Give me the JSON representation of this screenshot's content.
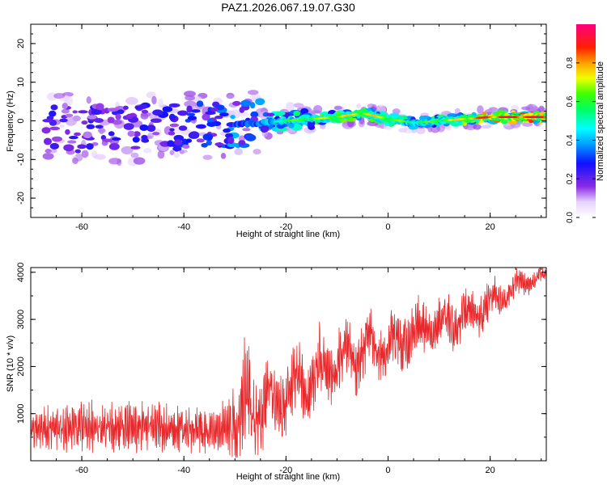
{
  "title": "PAZ1.2026.067.19.07.G30",
  "chart_data": [
    {
      "type": "heatmap",
      "title": "PAZ1.2026.067.19.07.G30",
      "xlabel": "Height of straight line (km)",
      "ylabel": "Frequency (Hz)",
      "xlim": [
        -70,
        31
      ],
      "ylim": [
        -25,
        25
      ],
      "xticks": [
        -60,
        -40,
        -20,
        0,
        20
      ],
      "yticks": [
        -20,
        -10,
        0,
        10,
        20
      ],
      "ridge": {
        "x": [
          -70,
          -60,
          -50,
          -40,
          -30,
          -25,
          -20,
          -15,
          -10,
          -5,
          0,
          5,
          10,
          15,
          20,
          25,
          31
        ],
        "freq": [
          -2,
          -2,
          -2,
          -1.5,
          -1,
          -0.5,
          0,
          0.5,
          1,
          2,
          0.5,
          -0.5,
          0,
          0.5,
          1,
          1,
          1
        ],
        "amplitude": [
          0.28,
          0.3,
          0.32,
          0.35,
          0.45,
          0.5,
          0.65,
          0.7,
          0.75,
          0.8,
          0.75,
          0.6,
          0.7,
          0.8,
          0.95,
          1.0,
          1.0
        ]
      },
      "colorbar": {
        "label": "Normalized spectral amplitude",
        "range": [
          0,
          1
        ],
        "ticks": [
          "0.0",
          "0.2",
          "0.4",
          "0.6",
          "0.8"
        ]
      }
    },
    {
      "type": "line",
      "xlabel": "Height of straight line (km)",
      "ylabel": "SNR (10 * v/v)",
      "xlim": [
        -70,
        31
      ],
      "ylim": [
        0,
        4100
      ],
      "xticks": [
        -60,
        -40,
        -20,
        0,
        20
      ],
      "yticks": [
        1000,
        2000,
        3000,
        4000
      ],
      "series": [
        {
          "name": "SNR",
          "color": "#e8282a",
          "x": [
            -70,
            -65,
            -60,
            -55,
            -50,
            -45,
            -40,
            -35,
            -32,
            -30,
            -28,
            -25,
            -22,
            -20,
            -15,
            -10,
            -5,
            0,
            5,
            10,
            15,
            20,
            25,
            31
          ],
          "mean": [
            650,
            700,
            700,
            720,
            720,
            700,
            680,
            620,
            650,
            800,
            1000,
            1150,
            1250,
            1400,
            1800,
            2100,
            2350,
            2400,
            2700,
            2900,
            3000,
            3350,
            3700,
            3950
          ],
          "spread": [
            450,
            550,
            600,
            600,
            600,
            600,
            550,
            500,
            700,
            1000,
            1300,
            1100,
            900,
            800,
            800,
            800,
            750,
            650,
            650,
            600,
            550,
            450,
            300,
            150
          ]
        }
      ]
    }
  ]
}
